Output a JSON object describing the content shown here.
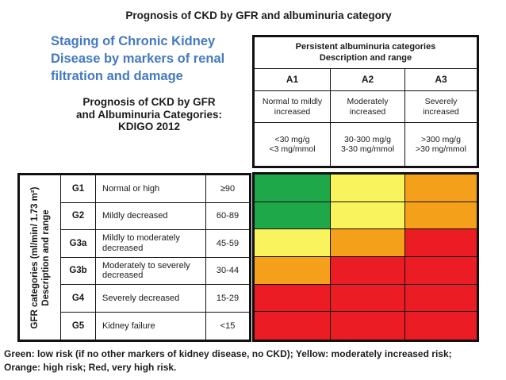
{
  "page": {
    "figure_title": "Prognosis of CKD by GFR and albuminuria category",
    "slide_heading": "Staging of Chronic Kidney Disease by markers of renal filtration and damage",
    "figure_subtitle_line1": "Prognosis of CKD by GFR",
    "figure_subtitle_line2": "and Albuminuria Categories:",
    "figure_subtitle_line3": "KDIGO 2012",
    "legend_line1": "Green: low risk (if no other markers of kidney disease, no CKD); Yellow: moderately increased risk;",
    "legend_line2": "Orange: high risk; Red, very high risk."
  },
  "albuminuria_table": {
    "header_line1": "Persistent albuminuria categories",
    "header_line2": "Description and range",
    "columns": [
      {
        "code": "A1",
        "description": "Normal to mildly increased",
        "range_line1": "<30 mg/g",
        "range_line2": "<3 mg/mmol"
      },
      {
        "code": "A2",
        "description": "Moderately increased",
        "range_line1": "30-300 mg/g",
        "range_line2": "3-30 mg/mmol"
      },
      {
        "code": "A3",
        "description": "Severely increased",
        "range_line1": ">300 mg/g",
        "range_line2": ">30 mg/mmol"
      }
    ]
  },
  "gfr_table": {
    "side_label_line1": "GFR categories (ml/min/ 1.73 m²)",
    "side_label_line2": "Description and range",
    "rows": [
      {
        "code": "G1",
        "description": "Normal or high",
        "range": "≥90"
      },
      {
        "code": "G2",
        "description": "Mildly decreased",
        "range": "60-89"
      },
      {
        "code": "G3a",
        "description": "Mildly to moderately decreased",
        "range": "45-59"
      },
      {
        "code": "G3b",
        "description": "Moderately to severely decreased",
        "range": "30-44"
      },
      {
        "code": "G4",
        "description": "Severely decreased",
        "range": "15-29"
      },
      {
        "code": "G5",
        "description": "Kidney failure",
        "range": "<15"
      }
    ]
  },
  "matrix": {
    "cells": [
      [
        "green",
        "yellow",
        "orange"
      ],
      [
        "green",
        "yellow",
        "orange"
      ],
      [
        "yellow",
        "orange",
        "red"
      ],
      [
        "orange",
        "red",
        "red"
      ],
      [
        "red",
        "red",
        "red"
      ],
      [
        "red",
        "red",
        "red"
      ]
    ]
  },
  "colors": {
    "green": "#1FA84A",
    "yellow": "#F9F35D",
    "orange": "#F5A01B",
    "red": "#EC1C24",
    "heading_blue": "#4379C4"
  },
  "chart_data": {
    "type": "heatmap",
    "title": "Prognosis of CKD by GFR and albuminuria category",
    "x_categories": [
      "A1",
      "A2",
      "A3"
    ],
    "y_categories": [
      "G1",
      "G2",
      "G3a",
      "G3b",
      "G4",
      "G5"
    ],
    "values": [
      [
        "green",
        "yellow",
        "orange"
      ],
      [
        "green",
        "yellow",
        "orange"
      ],
      [
        "yellow",
        "orange",
        "red"
      ],
      [
        "orange",
        "red",
        "red"
      ],
      [
        "red",
        "red",
        "red"
      ],
      [
        "red",
        "red",
        "red"
      ]
    ],
    "legend": "Green: low risk (if no other markers of kidney disease, no CKD); Yellow: moderately increased risk; Orange: high risk; Red: very high risk",
    "xlabel": "Persistent albuminuria categories Description and range",
    "ylabel": "GFR categories (ml/min/ 1.73 m²) Description and range"
  }
}
